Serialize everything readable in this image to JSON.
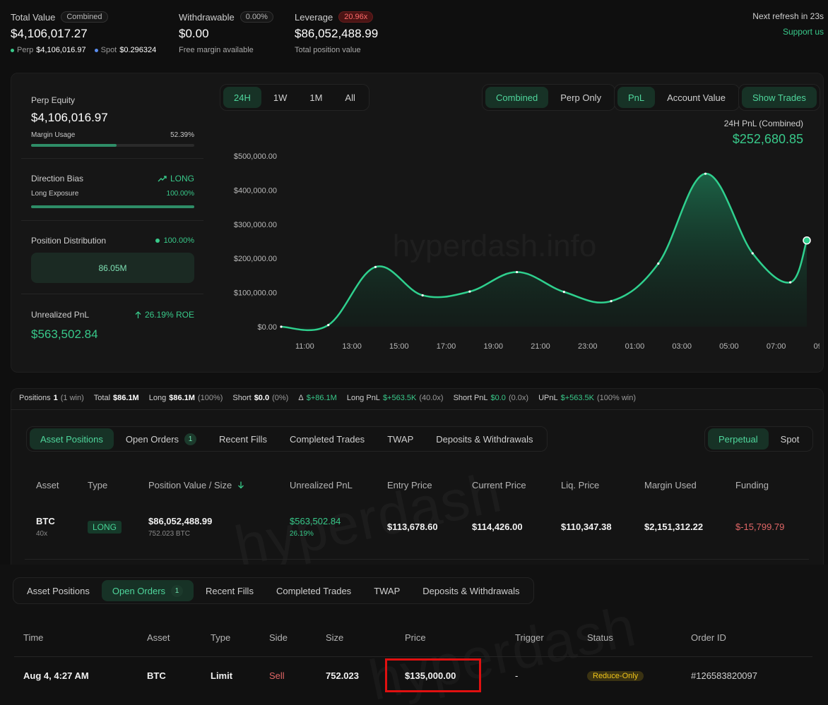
{
  "summary": {
    "total_value_label": "Total Value",
    "total_value_badge": "Combined",
    "total_value": "$4,106,017.27",
    "perp_label": "Perp",
    "perp_value": "$4,106,016.97",
    "spot_label": "Spot",
    "spot_value": "$0.296324",
    "withdrawable_label": "Withdrawable",
    "withdrawable_badge": "0.00%",
    "withdrawable_value": "$0.00",
    "withdrawable_sub": "Free margin available",
    "leverage_label": "Leverage",
    "leverage_badge": "20.96x",
    "leverage_value": "$86,052,488.99",
    "leverage_sub": "Total position value",
    "refresh_text": "Next refresh in 23s",
    "support_link": "Support us"
  },
  "left_panel": {
    "perp_equity_label": "Perp Equity",
    "perp_equity_value": "$4,106,016.97",
    "margin_usage_label": "Margin Usage",
    "margin_usage_value": "52.39%",
    "margin_usage_fraction": 0.5239,
    "direction_bias_label": "Direction Bias",
    "direction_bias_value": "LONG",
    "long_exposure_label": "Long Exposure",
    "long_exposure_value": "100.00%",
    "long_exposure_fraction": 1.0,
    "position_distribution_label": "Position Distribution",
    "position_distribution_value": "100.00%",
    "position_distribution_amount": "86.05M",
    "unrealized_pnl_label": "Unrealized PnL",
    "unrealized_pnl_roe": "26.19% ROE",
    "unrealized_pnl_value": "$563,502.84"
  },
  "chart_controls": {
    "ranges": [
      "24H",
      "1W",
      "1M",
      "All"
    ],
    "active_range": 0,
    "modes": [
      "Combined",
      "Perp Only"
    ],
    "active_mode": 0,
    "metrics": [
      "PnL",
      "Account Value"
    ],
    "active_metric": 0,
    "show_trades": "Show Trades"
  },
  "chart_data": {
    "type": "area",
    "title": "24H PnL (Combined)",
    "headline_value": "$252,680.85",
    "xlabel": "",
    "ylabel": "",
    "x_ticks": [
      "11:00",
      "13:00",
      "15:00",
      "17:00",
      "19:00",
      "21:00",
      "23:00",
      "01:00",
      "03:00",
      "05:00",
      "07:00",
      "09:00"
    ],
    "y_ticks": [
      "$0.00",
      "$100,000.00",
      "$200,000.00",
      "$300,000.00",
      "$400,000.00",
      "$500,000.00"
    ],
    "ylim": [
      0,
      500000
    ],
    "x_hours": [
      10.0,
      12.0,
      14.0,
      16.0,
      18.0,
      20.0,
      22.0,
      24.0,
      26.0,
      28.0,
      30.0,
      31.6,
      32.3
    ],
    "values": [
      0,
      5000,
      175000,
      92000,
      103000,
      160000,
      102000,
      75000,
      185000,
      448000,
      215000,
      130000,
      252680
    ],
    "grid": false,
    "watermark": "hyperdash.info"
  },
  "stats_strip": {
    "positions_label": "Positions",
    "positions_value": "1",
    "positions_sub": "(1 win)",
    "total_label": "Total",
    "total_value": "$86.1M",
    "long_label": "Long",
    "long_value": "$86.1M",
    "long_sub": "(100%)",
    "short_label": "Short",
    "short_value": "$0.0",
    "short_sub": "(0%)",
    "delta_label": "Δ",
    "delta_value": "$+86.1M",
    "long_pnl_label": "Long PnL",
    "long_pnl_value": "$+563.5K",
    "long_pnl_sub": "(40.0x)",
    "short_pnl_label": "Short PnL",
    "short_pnl_value": "$0.0",
    "short_pnl_sub": "(0.0x)",
    "upnl_label": "UPnL",
    "upnl_value": "$+563.5K",
    "upnl_sub": "(100% win)"
  },
  "tabs": {
    "items": [
      "Asset Positions",
      "Open Orders",
      "Recent Fills",
      "Completed Trades",
      "TWAP",
      "Deposits & Withdrawals"
    ],
    "open_orders_count": "1",
    "market_types": [
      "Perpetual",
      "Spot"
    ]
  },
  "positions_table": {
    "headers": [
      "Asset",
      "Type",
      "Position Value / Size",
      "Unrealized PnL",
      "Entry Price",
      "Current Price",
      "Liq. Price",
      "Margin Used",
      "Funding"
    ],
    "row": {
      "asset": "BTC",
      "leverage": "40x",
      "type": "LONG",
      "position_value": "$86,052,488.99",
      "position_size": "752.023 BTC",
      "unrealized_pnl": "$563,502.84",
      "unrealized_pct": "26.19%",
      "entry_price": "$113,678.60",
      "current_price": "$114,426.00",
      "liq_price": "$110,347.38",
      "margin_used": "$2,151,312.22",
      "funding": "$-15,799.79"
    },
    "watermark": "hyperdash"
  },
  "orders_table": {
    "headers": [
      "Time",
      "Asset",
      "Type",
      "Side",
      "Size",
      "Price",
      "Trigger",
      "Status",
      "Order ID"
    ],
    "row": {
      "time": "Aug 4, 4:27 AM",
      "asset": "BTC",
      "type": "Limit",
      "side": "Sell",
      "size": "752.023",
      "price": "$135,000.00",
      "trigger": "-",
      "status": "Reduce-Only",
      "order_id": "#126583820097"
    },
    "watermark": "hyperdash"
  },
  "colors": {
    "accent_green": "#38c98a",
    "loss_red": "#e06666",
    "highlight_box": "#e01010"
  }
}
